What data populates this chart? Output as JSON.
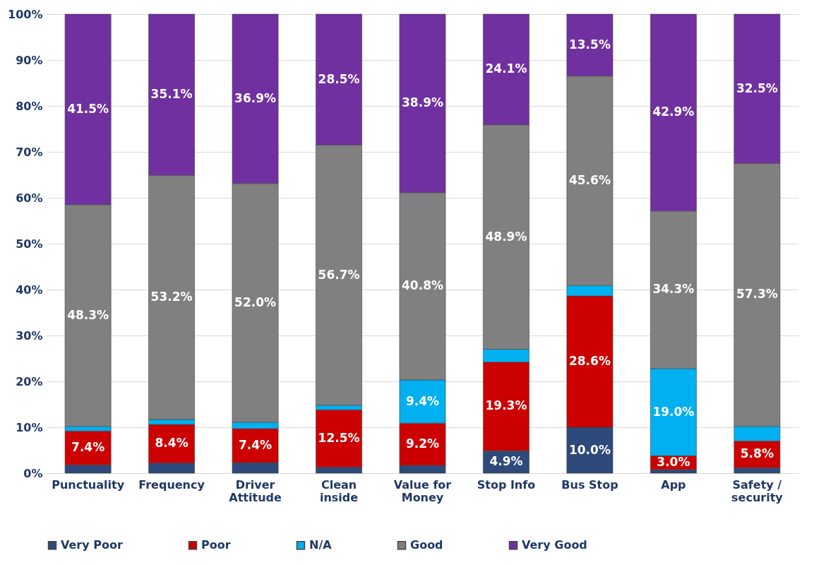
{
  "chart_data": {
    "type": "bar",
    "stacked": true,
    "categories": [
      "Punctuality",
      "Frequency",
      "Driver Attitude",
      "Clean inside",
      "Value for Money",
      "Stop Info",
      "Bus Stop",
      "App",
      "Safety / security"
    ],
    "series": [
      {
        "name": "Very Poor",
        "color": "#2e4a7a",
        "values": [
          1.8,
          2.2,
          2.3,
          1.3,
          1.7,
          4.9,
          10.0,
          0.8,
          1.2
        ],
        "value_labels": [
          null,
          null,
          null,
          null,
          null,
          "4.9%",
          "10.0%",
          null,
          null
        ]
      },
      {
        "name": "Poor",
        "color": "#cc0000",
        "values": [
          7.4,
          8.4,
          7.4,
          12.5,
          9.2,
          19.3,
          28.6,
          3.0,
          5.8
        ],
        "value_labels": [
          "7.4%",
          "8.4%",
          "7.4%",
          "12.5%",
          "9.2%",
          "19.3%",
          "28.6%",
          "3.0%",
          "5.8%"
        ]
      },
      {
        "name": "N/A",
        "color": "#00b0f0",
        "values": [
          1.0,
          1.1,
          1.4,
          1.0,
          9.4,
          2.8,
          2.3,
          19.0,
          3.2
        ],
        "value_labels": [
          null,
          null,
          null,
          null,
          "9.4%",
          null,
          null,
          "19.0%",
          null
        ]
      },
      {
        "name": "Good",
        "color": "#808080",
        "values": [
          48.3,
          53.2,
          52.0,
          56.7,
          40.8,
          48.9,
          45.6,
          34.3,
          57.3
        ],
        "value_labels": [
          "48.3%",
          "53.2%",
          "52.0%",
          "56.7%",
          "40.8%",
          "48.9%",
          "45.6%",
          "34.3%",
          "57.3%"
        ]
      },
      {
        "name": "Very Good",
        "color": "#7030a0",
        "values": [
          41.5,
          35.1,
          36.9,
          28.5,
          38.9,
          24.1,
          13.5,
          42.9,
          32.5
        ],
        "value_labels": [
          "41.5%",
          "35.1%",
          "36.9%",
          "28.5%",
          "38.9%",
          "24.1%",
          "13.5%",
          "42.9%",
          "32.5%"
        ]
      }
    ],
    "ylim": [
      0,
      100
    ],
    "yticks": [
      {
        "value": 0,
        "label": "0%"
      },
      {
        "value": 10,
        "label": "10%"
      },
      {
        "value": 20,
        "label": "20%"
      },
      {
        "value": 30,
        "label": "30%"
      },
      {
        "value": 40,
        "label": "40%"
      },
      {
        "value": 50,
        "label": "50%"
      },
      {
        "value": 60,
        "label": "60%"
      },
      {
        "value": 70,
        "label": "70%"
      },
      {
        "value": 80,
        "label": "80%"
      },
      {
        "value": 90,
        "label": "90%"
      },
      {
        "value": 100,
        "label": "100%"
      }
    ],
    "grid": "y",
    "legend": "bottom"
  }
}
